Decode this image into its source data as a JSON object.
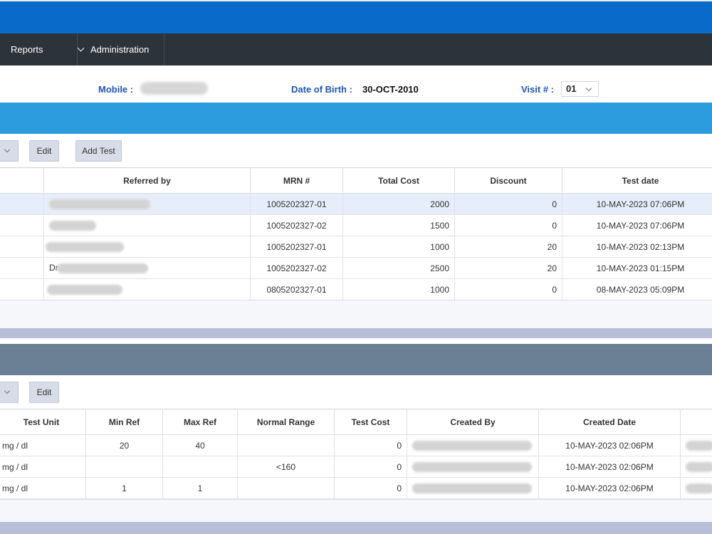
{
  "nav": {
    "reports_label": "Reports",
    "administration_label": "Administration"
  },
  "patient": {
    "mobile_label": "Mobile :",
    "dob_label": "Date of Birth :",
    "dob_value": "30-OCT-2010",
    "visit_label": "Visit # :",
    "visit_value": "01"
  },
  "toolbar1": {
    "edit_label": "Edit",
    "add_test_label": "Add Test"
  },
  "table1": {
    "headers": [
      "Referred by",
      "MRN #",
      "Total Cost",
      "Discount",
      "Test date"
    ],
    "rows": [
      {
        "referred_prefix": "",
        "mrn": "1005202327-01",
        "total_cost": "2000",
        "discount": "0",
        "test_date": "10-MAY-2023 07:06PM"
      },
      {
        "referred_prefix": "",
        "mrn": "1005202327-02",
        "total_cost": "1500",
        "discount": "0",
        "test_date": "10-MAY-2023 07:06PM"
      },
      {
        "referred_prefix": "",
        "mrn": "1005202327-01",
        "total_cost": "1000",
        "discount": "20",
        "test_date": "10-MAY-2023 02:13PM"
      },
      {
        "referred_prefix": "Dr",
        "mrn": "1005202327-02",
        "total_cost": "2500",
        "discount": "20",
        "test_date": "10-MAY-2023 01:15PM"
      },
      {
        "referred_prefix": "",
        "mrn": "0805202327-01",
        "total_cost": "1000",
        "discount": "0",
        "test_date": "08-MAY-2023 05:09PM"
      }
    ]
  },
  "toolbar2": {
    "edit_label": "Edit"
  },
  "table2": {
    "headers": [
      "Test Unit",
      "Min Ref",
      "Max Ref",
      "Normal Range",
      "Test Cost",
      "Created By",
      "Created Date"
    ],
    "rows": [
      {
        "unit": "mg / dl",
        "min_ref": "20",
        "max_ref": "40",
        "normal_range": "",
        "test_cost": "0",
        "created_date": "10-MAY-2023 02:06PM"
      },
      {
        "unit": "mg / dl",
        "min_ref": "",
        "max_ref": "",
        "normal_range": "<160",
        "test_cost": "0",
        "created_date": "10-MAY-2023 02:06PM"
      },
      {
        "unit": "mg / dl",
        "min_ref": "1",
        "max_ref": "1",
        "normal_range": "",
        "test_cost": "0",
        "created_date": "10-MAY-2023 02:06PM"
      }
    ]
  },
  "colors": {
    "header_blue": "#0a6ac9",
    "nav_dark": "#2d333b",
    "section_blue": "#2d9cde",
    "section_slate": "#6b8094",
    "label_blue": "#1a56b8"
  }
}
